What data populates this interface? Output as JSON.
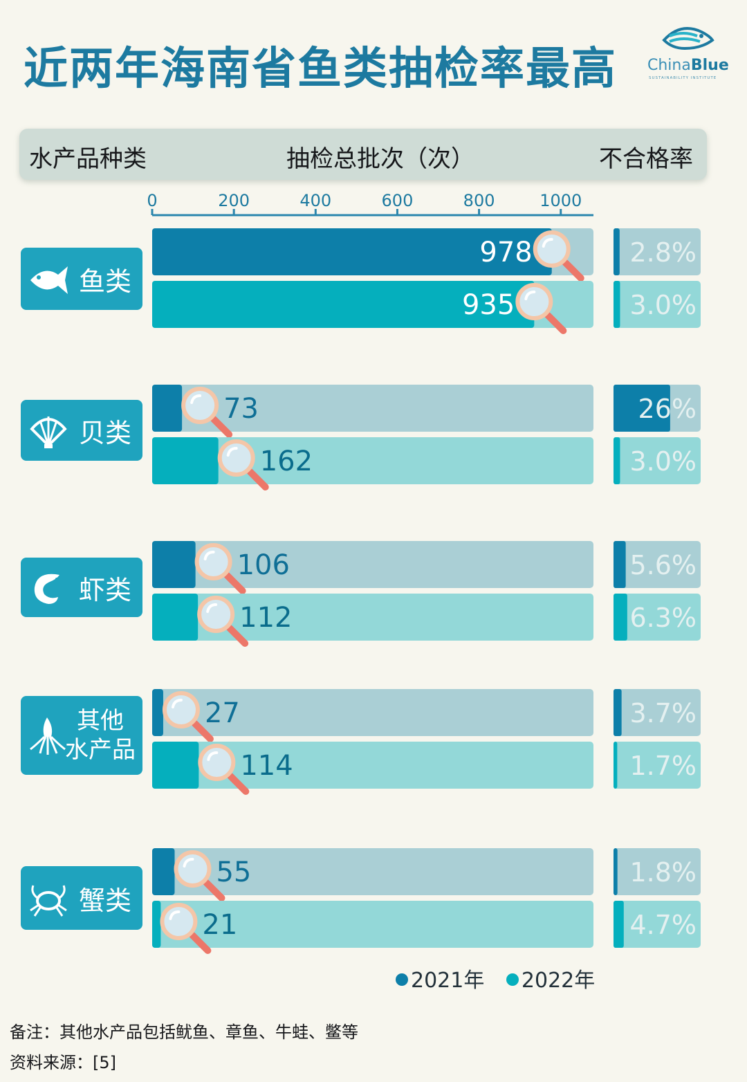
{
  "title": "近两年海南省鱼类抽检率最高",
  "logo": {
    "name_a": "China",
    "name_b": "Blue",
    "sub": "SUSTAINABILITY INSTITUTE"
  },
  "header": {
    "category": "水产品种类",
    "total": "抽检总批次（次）",
    "rate": "不合格率"
  },
  "colors": {
    "y2021": "#0d7fa9",
    "y2022": "#05afbd",
    "track2021": "#aacfd5",
    "track2022": "#93d8d8",
    "label2021": "#0f6f96",
    "label2022": "#0a6c8c",
    "category_bg": "#1fa3be",
    "glass": "#d6e8f0",
    "handle": "#ec7769"
  },
  "chart_data": {
    "type": "bar",
    "orientation": "horizontal",
    "xlim": [
      0,
      1080
    ],
    "x_ticks": [
      "0",
      "200",
      "400",
      "600",
      "800",
      "1000"
    ],
    "x_tick_values": [
      0,
      200,
      400,
      600,
      800,
      1000
    ],
    "rate_max": 40,
    "categories": [
      {
        "label": "鱼类",
        "icon": "fish-icon",
        "values": [
          978,
          935
        ],
        "value_labels": [
          "978",
          "935"
        ],
        "rates": [
          2.8,
          3.0
        ],
        "rate_labels": [
          "2.8%",
          "3.0%"
        ]
      },
      {
        "label": "贝类",
        "icon": "shell-icon",
        "values": [
          73,
          162
        ],
        "value_labels": [
          "73",
          "162"
        ],
        "rates": [
          26,
          3.0
        ],
        "rate_labels": [
          "26%",
          "3.0%"
        ]
      },
      {
        "label": "虾类",
        "icon": "shrimp-icon",
        "values": [
          106,
          112
        ],
        "value_labels": [
          "106",
          "112"
        ],
        "rates": [
          5.6,
          6.3
        ],
        "rate_labels": [
          "5.6%",
          "6.3%"
        ]
      },
      {
        "label": "其他水产品",
        "label_lines": [
          "其他",
          "水产品"
        ],
        "icon": "squid-icon",
        "values": [
          27,
          114
        ],
        "value_labels": [
          "27",
          "114"
        ],
        "rates": [
          3.7,
          1.7
        ],
        "rate_labels": [
          "3.7%",
          "1.7%"
        ]
      },
      {
        "label": "蟹类",
        "icon": "crab-icon",
        "values": [
          55,
          21
        ],
        "value_labels": [
          "55",
          "21"
        ],
        "rates": [
          1.8,
          4.7
        ],
        "rate_labels": [
          "1.8%",
          "4.7%"
        ]
      }
    ],
    "series": [
      {
        "name": "2021年"
      },
      {
        "name": "2022年"
      }
    ]
  },
  "legend": [
    "2021年",
    "2022年"
  ],
  "notes": {
    "remark": "备注：其他水产品包括鱿鱼、章鱼、牛蛙、鳖等",
    "source": "资料来源：[5]"
  }
}
